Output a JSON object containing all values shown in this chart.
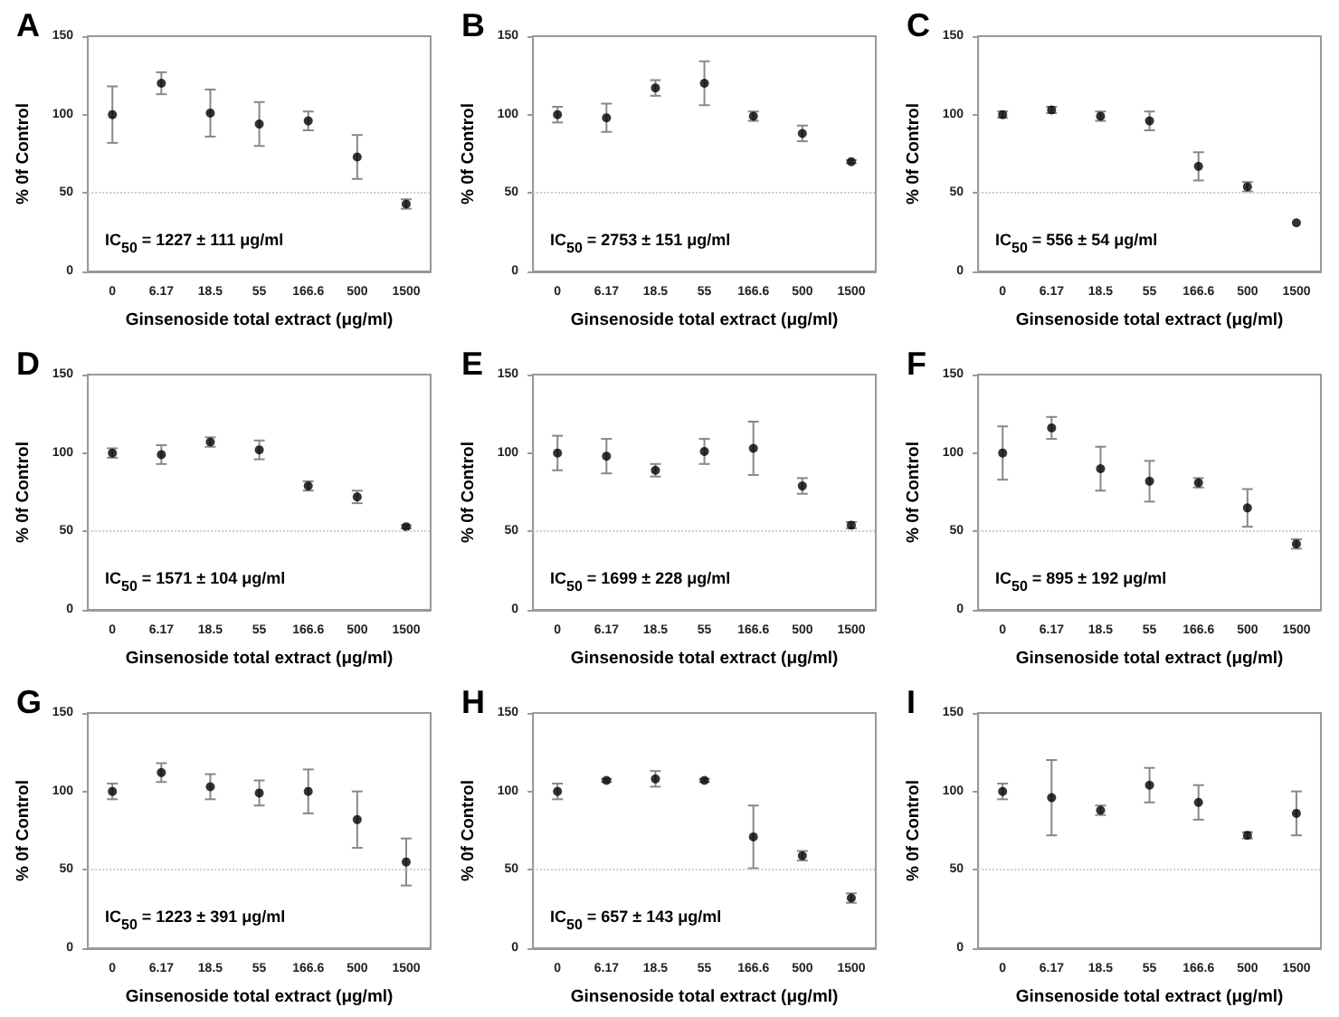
{
  "chart_data": [
    {
      "type": "scatter",
      "title": "A",
      "xlabel": "Ginsenoside total extract (μg/ml)",
      "ylabel": "% 0f Control",
      "categories": [
        "0",
        "6.17",
        "18.5",
        "55",
        "166.6",
        "500",
        "1500"
      ],
      "values": [
        100,
        120,
        101,
        94,
        96,
        73,
        43
      ],
      "errors": [
        18,
        7,
        15,
        14,
        6,
        14,
        3
      ],
      "color": "#000000",
      "marker": "circle",
      "ylim": [
        0,
        150
      ],
      "yticks": [
        0,
        50,
        100,
        150
      ],
      "grid": false,
      "ref_lines": [
        {
          "axis": "y",
          "value": 50,
          "color": "#cccccc",
          "line_style": "dotted"
        }
      ],
      "annotations": [
        "IC$_{50}$ = 1227 ± 111 μg/ml"
      ]
    },
    {
      "type": "scatter",
      "title": "B",
      "xlabel": "Ginsenoside total extract (μg/ml)",
      "ylabel": "% 0f Control",
      "categories": [
        "0",
        "6.17",
        "18.5",
        "55",
        "166.6",
        "500",
        "1500"
      ],
      "values": [
        100,
        98,
        117,
        120,
        99,
        88,
        70
      ],
      "errors": [
        5,
        9,
        5,
        14,
        3,
        5,
        1
      ],
      "color": "#000000",
      "marker": "circle",
      "ylim": [
        0,
        150
      ],
      "yticks": [
        0,
        50,
        100,
        150
      ],
      "grid": false,
      "ref_lines": [
        {
          "axis": "y",
          "value": 50,
          "color": "#cccccc",
          "line_style": "dotted"
        }
      ],
      "annotations": [
        "IC$_{50}$ = 2753 ± 151 μg/ml"
      ]
    },
    {
      "type": "scatter",
      "title": "C",
      "xlabel": "Ginsenoside total extract (μg/ml)",
      "ylabel": "% 0f Control",
      "categories": [
        "0",
        "6.17",
        "18.5",
        "55",
        "166.6",
        "500",
        "1500"
      ],
      "values": [
        100,
        103,
        99,
        96,
        67,
        54,
        31
      ],
      "errors": [
        2,
        2,
        3,
        6,
        9,
        3,
        null
      ],
      "color": "#000000",
      "marker": "circle",
      "ylim": [
        0,
        150
      ],
      "yticks": [
        0,
        50,
        100,
        150
      ],
      "grid": false,
      "ref_lines": [
        {
          "axis": "y",
          "value": 50,
          "color": "#cccccc",
          "line_style": "dotted"
        }
      ],
      "annotations": [
        "IC$_{50}$ = 556 ± 54 μg/ml"
      ]
    },
    {
      "type": "scatter",
      "title": "D",
      "xlabel": "Ginsenoside total extract (μg/ml)",
      "ylabel": "% 0f Control",
      "categories": [
        "0",
        "6.17",
        "18.5",
        "55",
        "166.6",
        "500",
        "1500"
      ],
      "values": [
        100,
        99,
        107,
        102,
        79,
        72,
        53
      ],
      "errors": [
        3,
        6,
        3,
        6,
        3,
        4,
        1
      ],
      "color": "#000000",
      "marker": "circle",
      "ylim": [
        0,
        150
      ],
      "yticks": [
        0,
        50,
        100,
        150
      ],
      "grid": false,
      "ref_lines": [
        {
          "axis": "y",
          "value": 50,
          "color": "#cccccc",
          "line_style": "dotted"
        }
      ],
      "annotations": [
        "IC$_{50}$ = 1571 ± 104 μg/ml"
      ]
    },
    {
      "type": "scatter",
      "title": "E",
      "xlabel": "Ginsenoside total extract (μg/ml)",
      "ylabel": "% 0f Control",
      "categories": [
        "0",
        "6.17",
        "18.5",
        "55",
        "166.6",
        "500",
        "1500"
      ],
      "values": [
        100,
        98,
        89,
        101,
        103,
        79,
        54
      ],
      "errors": [
        11,
        11,
        4,
        8,
        17,
        5,
        2
      ],
      "color": "#000000",
      "marker": "circle",
      "ylim": [
        0,
        150
      ],
      "yticks": [
        0,
        50,
        100,
        150
      ],
      "grid": false,
      "ref_lines": [
        {
          "axis": "y",
          "value": 50,
          "color": "#cccccc",
          "line_style": "dotted"
        }
      ],
      "annotations": [
        "IC$_{50}$ = 1699 ± 228 μg/ml"
      ]
    },
    {
      "type": "scatter",
      "title": "F",
      "xlabel": "Ginsenoside total extract (μg/ml)",
      "ylabel": "% 0f Control",
      "categories": [
        "0",
        "6.17",
        "18.5",
        "55",
        "166.6",
        "500",
        "1500"
      ],
      "values": [
        100,
        116,
        90,
        82,
        81,
        65,
        42
      ],
      "errors": [
        17,
        7,
        14,
        13,
        3,
        12,
        3
      ],
      "color": "#000000",
      "marker": "circle",
      "ylim": [
        0,
        150
      ],
      "yticks": [
        0,
        50,
        100,
        150
      ],
      "grid": false,
      "ref_lines": [
        {
          "axis": "y",
          "value": 50,
          "color": "#cccccc",
          "line_style": "dotted"
        }
      ],
      "annotations": [
        "IC$_{50}$ = 895 ± 192 μg/ml"
      ]
    },
    {
      "type": "scatter",
      "title": "G",
      "xlabel": "Ginsenoside total extract (μg/ml)",
      "ylabel": "% 0f Control",
      "categories": [
        "0",
        "6.17",
        "18.5",
        "55",
        "166.6",
        "500",
        "1500"
      ],
      "values": [
        100,
        112,
        103,
        99,
        100,
        82,
        55
      ],
      "errors": [
        5,
        6,
        8,
        8,
        14,
        18,
        15
      ],
      "color": "#000000",
      "marker": "circle",
      "ylim": [
        0,
        150
      ],
      "yticks": [
        0,
        50,
        100,
        150
      ],
      "grid": false,
      "ref_lines": [
        {
          "axis": "y",
          "value": 50,
          "color": "#cccccc",
          "line_style": "dotted"
        }
      ],
      "annotations": [
        "IC$_{50}$ = 1223 ± 391 μg/ml"
      ]
    },
    {
      "type": "scatter",
      "title": "H",
      "xlabel": "Ginsenoside total extract (μg/ml)",
      "ylabel": "% 0f Control",
      "categories": [
        "0",
        "6.17",
        "18.5",
        "55",
        "166.6",
        "500",
        "1500"
      ],
      "values": [
        100,
        107,
        108,
        107,
        71,
        59,
        32
      ],
      "errors": [
        5,
        1,
        5,
        1,
        20,
        3,
        3
      ],
      "color": "#000000",
      "marker": "circle",
      "ylim": [
        0,
        150
      ],
      "yticks": [
        0,
        50,
        100,
        150
      ],
      "grid": false,
      "ref_lines": [
        {
          "axis": "y",
          "value": 50,
          "color": "#cccccc",
          "line_style": "dotted"
        }
      ],
      "annotations": [
        "IC$_{50}$ = 657 ± 143 μg/ml"
      ]
    },
    {
      "type": "scatter",
      "title": "I",
      "xlabel": "Ginsenoside total extract (μg/ml)",
      "ylabel": "% 0f Control",
      "categories": [
        "0",
        "6.17",
        "18.5",
        "55",
        "166.6",
        "500",
        "1500"
      ],
      "values": [
        100,
        96,
        88,
        104,
        93,
        72,
        86
      ],
      "errors": [
        5,
        24,
        3,
        11,
        11,
        2,
        14
      ],
      "color": "#000000",
      "marker": "circle",
      "ylim": [
        0,
        150
      ],
      "yticks": [
        0,
        50,
        100,
        150
      ],
      "grid": false,
      "ref_lines": [
        {
          "axis": "y",
          "value": 50,
          "color": "#cccccc",
          "line_style": "dotted"
        }
      ]
    }
  ]
}
